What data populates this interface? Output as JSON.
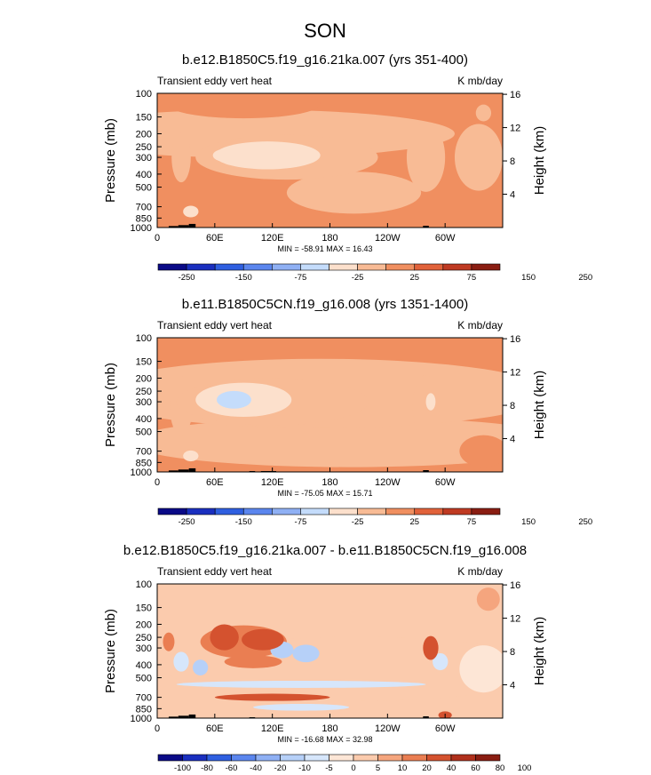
{
  "page_title": "SON",
  "colors": {
    "palette_11": [
      "#0a0a87",
      "#1a2fbf",
      "#2f5fe0",
      "#5b86ee",
      "#8fb0f4",
      "#c4dcfb",
      "#fce0cc",
      "#f8bb95",
      "#f08f60",
      "#e1623a",
      "#bf3a22",
      "#8a1d12"
    ],
    "palette_13": [
      "#0a0a87",
      "#1a2fbf",
      "#2f5fe0",
      "#5b86ee",
      "#8fb0f4",
      "#b6d0f8",
      "#d6e6fb",
      "#fde6d6",
      "#fbcbad",
      "#f5a57e",
      "#ea7e52",
      "#d4522f",
      "#b0301c",
      "#8a1d12"
    ],
    "topography": "#000000"
  },
  "chart_data": [
    {
      "type": "heatmap",
      "title": "b.e12.B1850C5.f19_g16.21ka.007 (yrs 351-400)",
      "left_label": "Transient eddy vert heat",
      "right_label": "K mb/day",
      "ylabel": "Pressure (mb)",
      "ylabel_right": "Height (km)",
      "xticks": [
        "0",
        "60E",
        "120E",
        "180",
        "120W",
        "60W"
      ],
      "xtick_values": [
        0,
        60,
        120,
        180,
        240,
        300
      ],
      "xlim": [
        0,
        360
      ],
      "yticks": [
        "100",
        "150",
        "200",
        "250",
        "300",
        "400",
        "500",
        "700",
        "850",
        "1000"
      ],
      "ytick_values": [
        100,
        150,
        200,
        250,
        300,
        400,
        500,
        700,
        850,
        1000
      ],
      "ylim": [
        100,
        1000
      ],
      "height_ticks": [
        "16",
        "12",
        "8",
        "4"
      ],
      "height_values": [
        16,
        12,
        8,
        4
      ],
      "stats": "MIN = -58.91  MAX =  16.43",
      "colorbar": {
        "levels": [
          "-250",
          "-200",
          "-150",
          "-100",
          "-75",
          "-50",
          "-25",
          "0",
          "25",
          "50",
          "75",
          "100",
          "150",
          "200",
          "250"
        ],
        "shown_labels": [
          "-250",
          "-150",
          "-75",
          "-25",
          "25",
          "75",
          "150",
          "250"
        ],
        "palette": "palette_11"
      },
      "background_value": 3,
      "blobs": [
        {
          "lon": 135,
          "p": 300,
          "dlon": 95,
          "dp": 130,
          "v": -18
        },
        {
          "lon": 115,
          "p": 290,
          "dlon": 55,
          "dp": 70,
          "v": -35
        },
        {
          "lon": 70,
          "p": 290,
          "dlon": 12,
          "dp": 25,
          "v": -50
        },
        {
          "lon": 25,
          "p": 300,
          "dlon": 10,
          "dp": 150,
          "v": -20
        },
        {
          "lon": 100,
          "p": 200,
          "dlon": 210,
          "dp": 95,
          "v": -8
        },
        {
          "lon": 280,
          "p": 300,
          "dlon": 20,
          "dp": 230,
          "v": -10
        },
        {
          "lon": 335,
          "p": 300,
          "dlon": 25,
          "dp": 220,
          "v": -8
        },
        {
          "lon": 205,
          "p": 550,
          "dlon": 70,
          "dp": 220,
          "v": -9
        },
        {
          "lon": 35,
          "p": 760,
          "dlon": 8,
          "dp": 60,
          "v": -40
        },
        {
          "lon": 340,
          "p": 140,
          "dlon": 8,
          "dp": 18,
          "v": -9
        },
        {
          "lon": 90,
          "p": 120,
          "dlon": 80,
          "dp": 30,
          "v": 8
        }
      ],
      "topography": [
        {
          "lon0": 12,
          "lon1": 22,
          "p": 975
        },
        {
          "lon0": 22,
          "lon1": 33,
          "p": 960
        },
        {
          "lon0": 33,
          "lon1": 40,
          "p": 940
        },
        {
          "lon0": 277,
          "lon1": 283,
          "p": 970
        }
      ]
    },
    {
      "type": "heatmap",
      "title": "b.e11.B1850C5CN.f19_g16.008 (yrs 1351-1400)",
      "left_label": "Transient eddy vert heat",
      "right_label": "K mb/day",
      "ylabel": "Pressure (mb)",
      "ylabel_right": "Height (km)",
      "xticks": [
        "0",
        "60E",
        "120E",
        "180",
        "120W",
        "60W"
      ],
      "xtick_values": [
        0,
        60,
        120,
        180,
        240,
        300
      ],
      "xlim": [
        0,
        360
      ],
      "yticks": [
        "100",
        "150",
        "200",
        "250",
        "300",
        "400",
        "500",
        "700",
        "850",
        "1000"
      ],
      "ytick_values": [
        100,
        150,
        200,
        250,
        300,
        400,
        500,
        700,
        850,
        1000
      ],
      "ylim": [
        100,
        1000
      ],
      "height_ticks": [
        "16",
        "12",
        "8",
        "4"
      ],
      "height_values": [
        16,
        12,
        8,
        4
      ],
      "stats": "MIN = -75.05  MAX =  15.71",
      "colorbar": {
        "levels": [
          "-250",
          "-200",
          "-150",
          "-100",
          "-75",
          "-50",
          "-25",
          "0",
          "25",
          "50",
          "75",
          "100",
          "150",
          "200",
          "250"
        ],
        "shown_labels": [
          "-250",
          "-150",
          "-75",
          "-25",
          "25",
          "75",
          "150",
          "250"
        ],
        "palette": "palette_11"
      },
      "background_value": 3,
      "blobs": [
        {
          "lon": 120,
          "p": 300,
          "dlon": 100,
          "dp": 140,
          "v": -20
        },
        {
          "lon": 90,
          "p": 290,
          "dlon": 50,
          "dp": 90,
          "v": -35
        },
        {
          "lon": 80,
          "p": 290,
          "dlon": 18,
          "dp": 40,
          "v": -55
        },
        {
          "lon": 25,
          "p": 320,
          "dlon": 12,
          "dp": 200,
          "v": -15
        },
        {
          "lon": 170,
          "p": 260,
          "dlon": 240,
          "dp": 200,
          "v": -8
        },
        {
          "lon": 280,
          "p": 330,
          "dlon": 14,
          "dp": 230,
          "v": -22
        },
        {
          "lon": 285,
          "p": 300,
          "dlon": 5,
          "dp": 40,
          "v": -40
        },
        {
          "lon": 200,
          "p": 600,
          "dlon": 230,
          "dp": 300,
          "v": -6
        },
        {
          "lon": 35,
          "p": 760,
          "dlon": 8,
          "dp": 55,
          "v": -45
        },
        {
          "lon": 340,
          "p": 700,
          "dlon": 25,
          "dp": 200,
          "v": 6
        }
      ],
      "topography": [
        {
          "lon0": 12,
          "lon1": 22,
          "p": 975
        },
        {
          "lon0": 22,
          "lon1": 33,
          "p": 960
        },
        {
          "lon0": 33,
          "lon1": 40,
          "p": 940
        },
        {
          "lon0": 96,
          "lon1": 102,
          "p": 985
        },
        {
          "lon0": 108,
          "lon1": 124,
          "p": 985
        },
        {
          "lon0": 277,
          "lon1": 283,
          "p": 970
        }
      ]
    },
    {
      "type": "heatmap",
      "title": "b.e12.B1850C5.f19_g16.21ka.007 - b.e11.B1850C5CN.f19_g16.008",
      "left_label": "Transient eddy vert heat",
      "right_label": "K mb/day",
      "ylabel": "Pressure (mb)",
      "ylabel_right": "Height (km)",
      "xticks": [
        "0",
        "60E",
        "120E",
        "180",
        "120W",
        "60W"
      ],
      "xtick_values": [
        0,
        60,
        120,
        180,
        240,
        300
      ],
      "xlim": [
        0,
        360
      ],
      "yticks": [
        "100",
        "150",
        "200",
        "250",
        "300",
        "400",
        "500",
        "700",
        "850",
        "1000"
      ],
      "ytick_values": [
        100,
        150,
        200,
        250,
        300,
        400,
        500,
        700,
        850,
        1000
      ],
      "ylim": [
        100,
        1000
      ],
      "height_ticks": [
        "16",
        "12",
        "8",
        "4"
      ],
      "height_values": [
        16,
        12,
        8,
        4
      ],
      "stats": "MIN = -16.68  MAX =  32.98",
      "colorbar": {
        "levels": [
          "-100",
          "-80",
          "-60",
          "-40",
          "-20",
          "-10",
          "-5",
          "0",
          "5",
          "10",
          "20",
          "40",
          "60",
          "80",
          "100"
        ],
        "shown_labels": [
          "-100",
          "-80",
          "-60",
          "-40",
          "-20",
          "-10",
          "-5",
          "0",
          "5",
          "10",
          "20",
          "40",
          "60",
          "80",
          "100"
        ],
        "palette": "palette_13"
      },
      "background_value": 2,
      "blobs": [
        {
          "lon": 90,
          "p": 270,
          "dlon": 45,
          "dp": 80,
          "v": 11
        },
        {
          "lon": 70,
          "p": 250,
          "dlon": 15,
          "dp": 55,
          "v": 28
        },
        {
          "lon": 110,
          "p": 260,
          "dlon": 22,
          "dp": 45,
          "v": 22
        },
        {
          "lon": 100,
          "p": 380,
          "dlon": 30,
          "dp": 35,
          "v": 11
        },
        {
          "lon": 130,
          "p": 310,
          "dlon": 12,
          "dp": 40,
          "v": -12
        },
        {
          "lon": 155,
          "p": 330,
          "dlon": 14,
          "dp": 45,
          "v": -14
        },
        {
          "lon": 25,
          "p": 380,
          "dlon": 8,
          "dp": 60,
          "v": -9
        },
        {
          "lon": 12,
          "p": 270,
          "dlon": 6,
          "dp": 40,
          "v": 12
        },
        {
          "lon": 150,
          "p": 560,
          "dlon": 130,
          "dp": 22,
          "v": -9
        },
        {
          "lon": 120,
          "p": 700,
          "dlon": 60,
          "dp": 28,
          "v": 22
        },
        {
          "lon": 45,
          "p": 420,
          "dlon": 8,
          "dp": 50,
          "v": -12
        },
        {
          "lon": 150,
          "p": 830,
          "dlon": 50,
          "dp": 30,
          "v": -7
        },
        {
          "lon": 285,
          "p": 300,
          "dlon": 8,
          "dp": 60,
          "v": 24
        },
        {
          "lon": 295,
          "p": 380,
          "dlon": 8,
          "dp": 50,
          "v": -9
        },
        {
          "lon": 300,
          "p": 950,
          "dlon": 7,
          "dp": 40,
          "v": 28
        },
        {
          "lon": 210,
          "p": 430,
          "dlon": 200,
          "dp": 300,
          "v": 3
        },
        {
          "lon": 340,
          "p": 430,
          "dlon": 25,
          "dp": 200,
          "v": -3
        },
        {
          "lon": 345,
          "p": 130,
          "dlon": 12,
          "dp": 25,
          "v": 6
        }
      ],
      "topography": [
        {
          "lon0": 12,
          "lon1": 22,
          "p": 975
        },
        {
          "lon0": 22,
          "lon1": 33,
          "p": 960
        },
        {
          "lon0": 33,
          "lon1": 40,
          "p": 940
        },
        {
          "lon0": 96,
          "lon1": 102,
          "p": 985
        },
        {
          "lon0": 277,
          "lon1": 283,
          "p": 970
        }
      ]
    }
  ]
}
